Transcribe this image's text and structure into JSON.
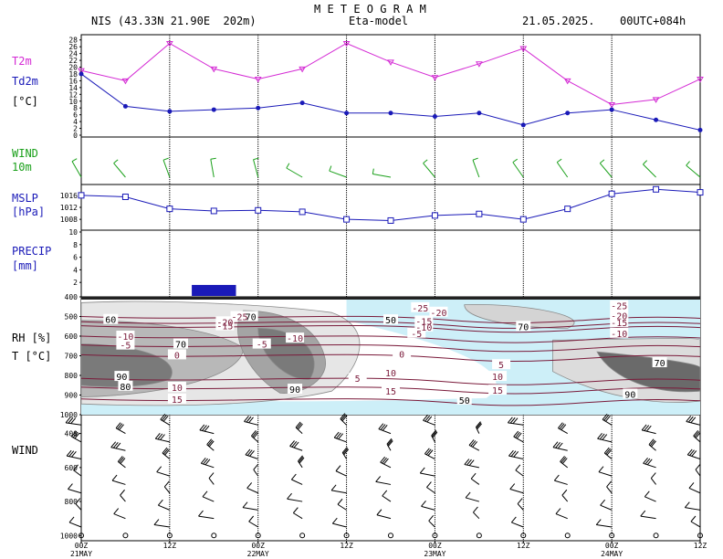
{
  "header": {
    "title": "M E T E O G R A M",
    "station": "NIS (43.33N 21.90E  202m)",
    "model": "Eta-model",
    "date": "21.05.2025.",
    "run": "00UTC+084h"
  },
  "panel_labels": {
    "t2m": "T2m",
    "td2m": "Td2m",
    "temp_unit": "[°C]",
    "wind": "WIND",
    "wind_height": "10m",
    "mslp": "MSLP",
    "mslp_unit": "[hPa]",
    "precip": "PRECIP",
    "precip_unit": "[mm]",
    "rh": "RH [%]",
    "t_unit": "T [°C]",
    "upper_wind": "WIND"
  },
  "colors": {
    "t2m": "#d42ad4",
    "td2m": "#1a1ab8",
    "wind": "#1aa01a",
    "mslp": "#1a1ab8",
    "precip": "#1a1ab8",
    "isotherm": "#7a1a3a",
    "rh_lines": "#8a8a8a",
    "cold_fill": "#cdeff8"
  },
  "time_axis": {
    "ticks": [
      "00Z",
      "12Z",
      "00Z",
      "12Z",
      "00Z",
      "12Z",
      "00Z",
      "12Z"
    ],
    "dates": [
      "21MAY",
      "22MAY",
      "23MAY",
      "24MAY"
    ]
  },
  "chart_data": [
    {
      "type": "line",
      "panel": "temperature",
      "x": [
        0,
        6,
        12,
        18,
        24,
        30,
        36,
        42,
        48,
        54,
        60,
        66,
        72,
        78,
        84
      ],
      "series": [
        {
          "name": "T2m",
          "values": [
            19,
            16,
            27,
            19.5,
            16.5,
            19.5,
            27,
            21.5,
            17,
            21,
            25.5,
            16,
            9,
            10.5,
            16.5
          ]
        },
        {
          "name": "Td2m",
          "values": [
            18,
            8.5,
            7,
            7.5,
            8,
            9.5,
            6.5,
            6.5,
            5.5,
            6.5,
            3,
            6.5,
            7.5,
            4.5,
            1.5
          ]
        }
      ],
      "y_ticks": [
        0,
        2,
        4,
        6,
        8,
        10,
        12,
        14,
        16,
        18,
        20,
        22,
        24,
        26,
        28
      ],
      "ylim": [
        0,
        29
      ]
    },
    {
      "type": "line",
      "panel": "mslp",
      "x": [
        0,
        6,
        12,
        18,
        24,
        30,
        36,
        42,
        48,
        54,
        60,
        66,
        72,
        78,
        84
      ],
      "series": [
        {
          "name": "MSLP",
          "values": [
            1016,
            1015.5,
            1011.5,
            1010.8,
            1011,
            1010.5,
            1008,
            1007.6,
            1009.3,
            1009.8,
            1008,
            1011.5,
            1016.5,
            1018,
            1017
          ]
        }
      ],
      "y_ticks": [
        1008,
        1012,
        1016
      ],
      "ylim": [
        1005,
        1019
      ]
    },
    {
      "type": "bar",
      "panel": "precip",
      "x_start": [
        15
      ],
      "x_end": [
        21
      ],
      "values": [
        1.6
      ],
      "y_ticks": [
        2,
        4,
        6,
        8,
        10
      ],
      "ylim": [
        0,
        10
      ]
    },
    {
      "type": "heatmap",
      "panel": "rh_temperature_cross_section",
      "y_ticks": [
        400,
        500,
        600,
        700,
        800,
        900,
        1000
      ],
      "ylim": [
        1000,
        400
      ],
      "rh_labels": [
        {
          "text": "60",
          "x": 4,
          "p": 515
        },
        {
          "text": "50",
          "x": 42,
          "p": 517
        },
        {
          "text": "70",
          "x": 60,
          "p": 550
        },
        {
          "text": "70",
          "x": 23,
          "p": 500
        },
        {
          "text": "70",
          "x": 13.5,
          "p": 640
        },
        {
          "text": "70",
          "x": 78.5,
          "p": 735
        },
        {
          "text": "50",
          "x": 52,
          "p": 925
        },
        {
          "text": "90",
          "x": 5.5,
          "p": 805
        },
        {
          "text": "80",
          "x": 6,
          "p": 855
        },
        {
          "text": "90",
          "x": 29,
          "p": 870
        },
        {
          "text": "90",
          "x": 74.5,
          "p": 895
        }
      ],
      "isotherms": [
        {
          "text": "-25",
          "p": 500,
          "x0": 0,
          "x1": 84,
          "lx": 21.5
        },
        {
          "text": "-20",
          "p": 527,
          "x0": 0,
          "x1": 84,
          "lx": 19.5
        },
        {
          "text": "-15",
          "p": 547,
          "x0": 0,
          "x1": 84,
          "lx": 19.5
        },
        {
          "text": "-10",
          "p": 600,
          "x0": 0,
          "x1": 84,
          "lx": 6
        },
        {
          "text": "-5",
          "p": 645,
          "x0": 0,
          "x1": 84,
          "lx": 6
        },
        {
          "text": "0",
          "p": 695,
          "x0": 0,
          "x1": 84,
          "lx": 13
        },
        {
          "text": "5",
          "p": 815,
          "x0": 0,
          "x1": 84,
          "lx": 37.5
        },
        {
          "text": "10",
          "p": 860,
          "x0": 0,
          "x1": 84,
          "lx": 13
        },
        {
          "text": "15",
          "p": 920,
          "x0": 0,
          "x1": 84,
          "lx": 13
        }
      ],
      "isotherm_labels_extra": [
        {
          "text": "-25",
          "x": 46,
          "p": 455
        },
        {
          "text": "-20",
          "x": 48.5,
          "p": 478
        },
        {
          "text": "-15",
          "x": 46.5,
          "p": 523
        },
        {
          "text": "-10",
          "x": 46.5,
          "p": 553
        },
        {
          "text": "-5",
          "x": 45.5,
          "p": 585
        },
        {
          "text": "0",
          "x": 43.5,
          "p": 690
        },
        {
          "text": "5",
          "x": 57,
          "p": 745
        },
        {
          "text": "10",
          "x": 56.5,
          "p": 805
        },
        {
          "text": "15",
          "x": 56.5,
          "p": 875
        },
        {
          "text": "-25",
          "x": 73,
          "p": 445
        },
        {
          "text": "-20",
          "x": 73,
          "p": 495
        },
        {
          "text": "-15",
          "x": 73,
          "p": 530
        },
        {
          "text": "-10",
          "x": 73,
          "p": 585
        },
        {
          "text": "-10",
          "x": 29,
          "p": 610
        },
        {
          "text": "-5",
          "x": 24.5,
          "p": 640
        },
        {
          "text": "10",
          "x": 42,
          "p": 785
        },
        {
          "text": "15",
          "x": 42,
          "p": 880
        }
      ]
    }
  ],
  "wind_axis": {
    "ticks": [
      "400",
      "600",
      "800",
      "1000"
    ]
  }
}
